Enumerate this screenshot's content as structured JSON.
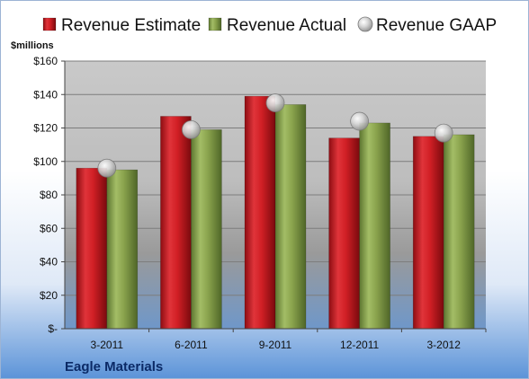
{
  "chart_data": {
    "type": "bar",
    "categories": [
      "3-2011",
      "6-2011",
      "9-2011",
      "12-2011",
      "3-2012"
    ],
    "series": [
      {
        "name": "Revenue Estimate",
        "kind": "bar",
        "color": "#c0161c",
        "values": [
          96,
          127,
          139,
          114,
          115
        ]
      },
      {
        "name": "Revenue Actual",
        "kind": "bar",
        "color": "#86a04a",
        "values": [
          95,
          119,
          134,
          123,
          116
        ]
      },
      {
        "name": "Revenue GAAP",
        "kind": "marker",
        "color": "#b8b8b8",
        "values": [
          96,
          119,
          135,
          124,
          117
        ]
      }
    ],
    "y_unit": "$millions",
    "y_ticks": [
      0,
      20,
      40,
      60,
      80,
      100,
      120,
      140,
      160
    ],
    "y_tick_labels": [
      "$-",
      "$20",
      "$40",
      "$60",
      "$80",
      "$100",
      "$120",
      "$140",
      "$160"
    ],
    "ylim": [
      0,
      160
    ],
    "grid": true,
    "legend_position": "top"
  },
  "company": "Eagle Materials"
}
